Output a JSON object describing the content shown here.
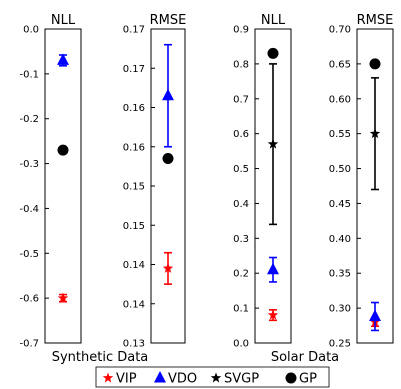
{
  "chart_data": [
    {
      "type": "scatter",
      "title": "NLL",
      "group": "Synthetic Data",
      "ylim": [
        -0.7,
        0.0
      ],
      "yticks": [
        0.0,
        -0.1,
        -0.2,
        -0.3,
        -0.4,
        -0.5,
        -0.6,
        -0.7
      ],
      "ytick_labels": [
        "0.0",
        "-0.1",
        "-0.2",
        "-0.3",
        "-0.4",
        "-0.5",
        "-0.6",
        "-0.7"
      ],
      "points": [
        {
          "series": "VIP",
          "y": -0.6,
          "err": 0.008
        },
        {
          "series": "VDO",
          "y": -0.07,
          "err": 0.012
        },
        {
          "series": "GP",
          "y": -0.27,
          "err": 0
        }
      ]
    },
    {
      "type": "scatter",
      "title": "RMSE",
      "group": "Synthetic Data",
      "ylim": [
        0.13,
        0.17
      ],
      "yticks": [
        0.13,
        0.135,
        0.14,
        0.145,
        0.15,
        0.155,
        0.16,
        0.165,
        0.17
      ],
      "ytick_labels": [
        "0.13",
        "0.14",
        "0.14",
        "0.15",
        "0.15",
        "0.16",
        "0.16",
        "0.17",
        "0.17"
      ],
      "points": [
        {
          "series": "VIP",
          "y": 0.1395,
          "err": 0.002
        },
        {
          "series": "VDO",
          "y": 0.1615,
          "err": 0.0065
        },
        {
          "series": "GP",
          "y": 0.1535,
          "err": 0
        }
      ]
    },
    {
      "type": "scatter",
      "title": "NLL",
      "group": "Solar Data",
      "ylim": [
        0.0,
        0.9
      ],
      "yticks": [
        0.0,
        0.1,
        0.2,
        0.3,
        0.4,
        0.5,
        0.6,
        0.7,
        0.8,
        0.9
      ],
      "ytick_labels": [
        "0.0",
        "0.1",
        "0.2",
        "0.3",
        "0.4",
        "0.5",
        "0.6",
        "0.7",
        "0.8",
        "0.9"
      ],
      "points": [
        {
          "series": "VIP",
          "y": 0.08,
          "err": 0.015
        },
        {
          "series": "VDO",
          "y": 0.21,
          "err": 0.035
        },
        {
          "series": "SVGP",
          "y": 0.57,
          "err": 0.23
        },
        {
          "series": "GP",
          "y": 0.83,
          "err": 0
        }
      ]
    },
    {
      "type": "scatter",
      "title": "RMSE",
      "group": "Solar Data",
      "ylim": [
        0.25,
        0.7
      ],
      "yticks": [
        0.25,
        0.3,
        0.35,
        0.4,
        0.45,
        0.5,
        0.55,
        0.6,
        0.65,
        0.7
      ],
      "ytick_labels": [
        "0.25",
        "0.30",
        "0.35",
        "0.40",
        "0.45",
        "0.50",
        "0.55",
        "0.60",
        "0.65",
        "0.70"
      ],
      "points": [
        {
          "series": "VIP",
          "y": 0.28,
          "err": 0.006
        },
        {
          "series": "VDO",
          "y": 0.288,
          "err": 0.02
        },
        {
          "series": "SVGP",
          "y": 0.55,
          "err": 0.08
        },
        {
          "series": "GP",
          "y": 0.65,
          "err": 0
        }
      ]
    }
  ],
  "group_labels": [
    "Synthetic Data",
    "Solar Data"
  ],
  "legend": {
    "placement": "bottom",
    "entries": [
      {
        "series": "VIP",
        "label": "VIP",
        "marker": "star",
        "color": "#ff0000"
      },
      {
        "series": "VDO",
        "label": "VDO",
        "marker": "triangle",
        "color": "#0000ff"
      },
      {
        "series": "SVGP",
        "label": "SVGP",
        "marker": "star",
        "color": "#000000"
      },
      {
        "series": "GP",
        "label": "GP",
        "marker": "circle",
        "color": "#000000"
      }
    ]
  }
}
